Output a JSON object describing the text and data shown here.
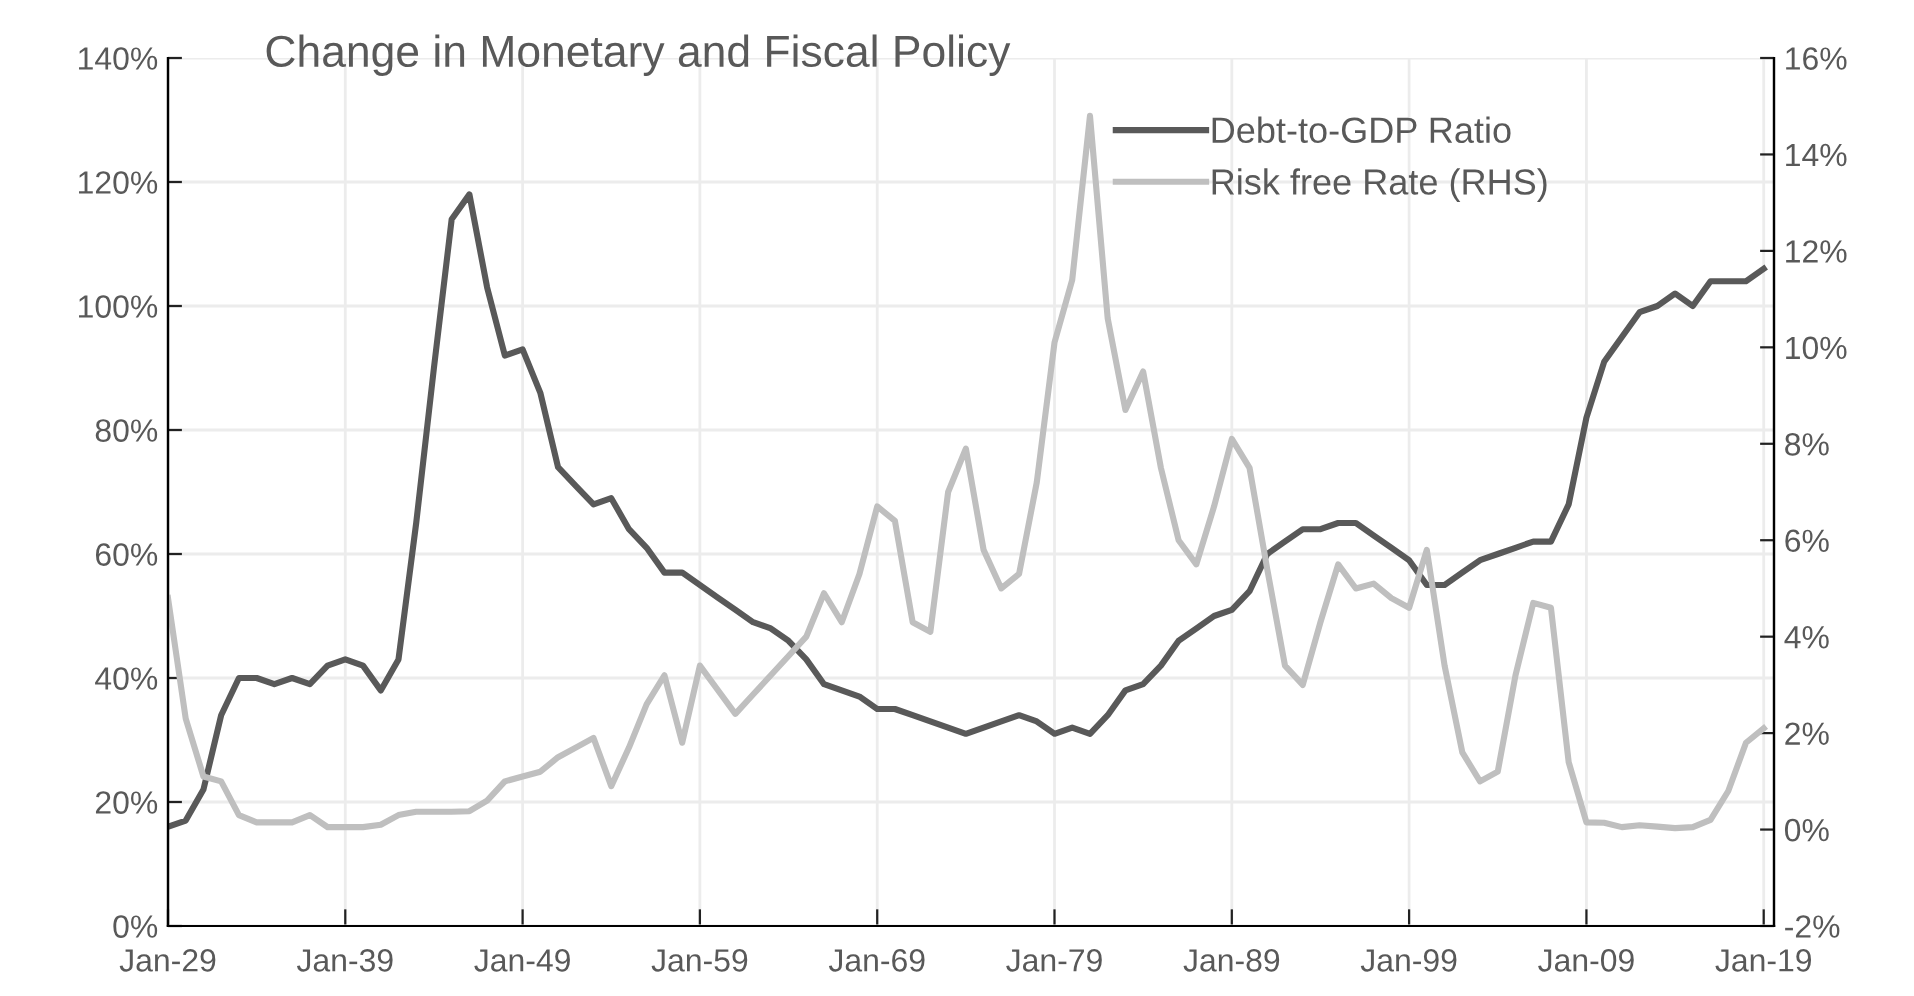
{
  "chart_data": {
    "type": "line",
    "title": "Change in Monetary and Fiscal Policy",
    "x": [
      "1929",
      "1930",
      "1931",
      "1932",
      "1933",
      "1934",
      "1935",
      "1936",
      "1937",
      "1938",
      "1939",
      "1940",
      "1941",
      "1942",
      "1943",
      "1944",
      "1945",
      "1946",
      "1947",
      "1948",
      "1949",
      "1950",
      "1951",
      "1952",
      "1953",
      "1954",
      "1955",
      "1956",
      "1957",
      "1958",
      "1959",
      "1960",
      "1961",
      "1962",
      "1963",
      "1964",
      "1965",
      "1966",
      "1967",
      "1968",
      "1969",
      "1970",
      "1971",
      "1972",
      "1973",
      "1974",
      "1975",
      "1976",
      "1977",
      "1978",
      "1979",
      "1980",
      "1981",
      "1982",
      "1983",
      "1984",
      "1985",
      "1986",
      "1987",
      "1988",
      "1989",
      "1990",
      "1991",
      "1992",
      "1993",
      "1994",
      "1995",
      "1996",
      "1997",
      "1998",
      "1999",
      "2000",
      "2001",
      "2002",
      "2003",
      "2004",
      "2005",
      "2006",
      "2007",
      "2008",
      "2009",
      "2010",
      "2011",
      "2012",
      "2013",
      "2014",
      "2015",
      "2016",
      "2017",
      "2018",
      "2019"
    ],
    "series": [
      {
        "name": "Debt-to-GDP Ratio",
        "color": "#595959",
        "values": [
          16,
          17,
          22,
          34,
          40,
          40,
          39,
          40,
          39,
          42,
          43,
          42,
          38,
          43,
          65,
          90,
          114,
          118,
          103,
          92,
          93,
          86,
          74,
          71,
          68,
          69,
          64,
          61,
          57,
          57,
          55,
          53,
          51,
          49,
          48,
          46,
          43,
          39,
          38,
          37,
          35,
          35,
          34,
          33,
          32,
          31,
          32,
          33,
          34,
          33,
          31,
          32,
          31,
          34,
          38,
          39,
          42,
          46,
          48,
          50,
          51,
          54,
          60,
          62,
          64,
          64,
          65,
          65,
          63,
          61,
          59,
          55,
          55,
          57,
          59,
          60,
          61,
          62,
          62,
          68,
          82,
          91,
          95,
          99,
          100,
          102,
          100,
          104,
          104,
          104,
          106
        ]
      },
      {
        "name": "Risk free Rate (RHS)",
        "color": "#bfbfbf",
        "axis": "y2",
        "values": [
          4.8,
          2.3,
          1.1,
          1.0,
          0.3,
          0.15,
          0.15,
          0.15,
          0.3,
          0.05,
          0.05,
          0.05,
          0.1,
          0.3,
          0.37,
          0.37,
          0.37,
          0.38,
          0.6,
          1.0,
          1.1,
          1.2,
          1.5,
          1.7,
          1.9,
          0.9,
          1.7,
          2.6,
          3.2,
          1.8,
          3.4,
          2.9,
          2.4,
          2.8,
          3.2,
          3.6,
          4.0,
          4.9,
          4.3,
          5.3,
          6.7,
          6.4,
          4.3,
          4.1,
          7.0,
          7.9,
          5.8,
          5.0,
          5.3,
          7.2,
          10.1,
          11.4,
          14.8,
          10.6,
          8.7,
          9.5,
          7.5,
          6.0,
          5.5,
          6.7,
          8.1,
          7.5,
          5.4,
          3.4,
          3.0,
          4.3,
          5.5,
          5.0,
          5.1,
          4.8,
          4.6,
          5.8,
          3.4,
          1.6,
          1.0,
          1.2,
          3.2,
          4.7,
          4.6,
          1.4,
          0.15,
          0.14,
          0.05,
          0.09,
          0.06,
          0.03,
          0.05,
          0.2,
          0.8,
          1.8,
          2.1
        ]
      }
    ],
    "xlim": [
      "1929-01",
      "2019-08"
    ],
    "xticks": [
      {
        "value": "1929-01",
        "label": "Jan-29"
      },
      {
        "value": "1939-01",
        "label": "Jan-39"
      },
      {
        "value": "1949-01",
        "label": "Jan-49"
      },
      {
        "value": "1959-01",
        "label": "Jan-59"
      },
      {
        "value": "1969-01",
        "label": "Jan-69"
      },
      {
        "value": "1979-01",
        "label": "Jan-79"
      },
      {
        "value": "1989-01",
        "label": "Jan-89"
      },
      {
        "value": "1999-01",
        "label": "Jan-99"
      },
      {
        "value": "2009-01",
        "label": "Jan-09"
      },
      {
        "value": "2019-01",
        "label": "Jan-19"
      }
    ],
    "ylim": [
      0,
      140
    ],
    "yticks": [
      {
        "value": 0,
        "label": "0%"
      },
      {
        "value": 20,
        "label": "20%"
      },
      {
        "value": 40,
        "label": "40%"
      },
      {
        "value": 60,
        "label": "60%"
      },
      {
        "value": 80,
        "label": "80%"
      },
      {
        "value": 100,
        "label": "100%"
      },
      {
        "value": 120,
        "label": "120%"
      },
      {
        "value": 140,
        "label": "140%"
      }
    ],
    "y2lim": [
      -2,
      16
    ],
    "y2ticks": [
      {
        "value": -2,
        "label": "-2%"
      },
      {
        "value": 0,
        "label": "0%"
      },
      {
        "value": 2,
        "label": "2%"
      },
      {
        "value": 4,
        "label": "4%"
      },
      {
        "value": 6,
        "label": "6%"
      },
      {
        "value": 8,
        "label": "8%"
      },
      {
        "value": 10,
        "label": "10%"
      },
      {
        "value": 12,
        "label": "12%"
      },
      {
        "value": 14,
        "label": "14%"
      },
      {
        "value": 16,
        "label": "16%"
      }
    ],
    "grid": true,
    "legend": "top right",
    "marker": "none",
    "line_style": "solid"
  }
}
